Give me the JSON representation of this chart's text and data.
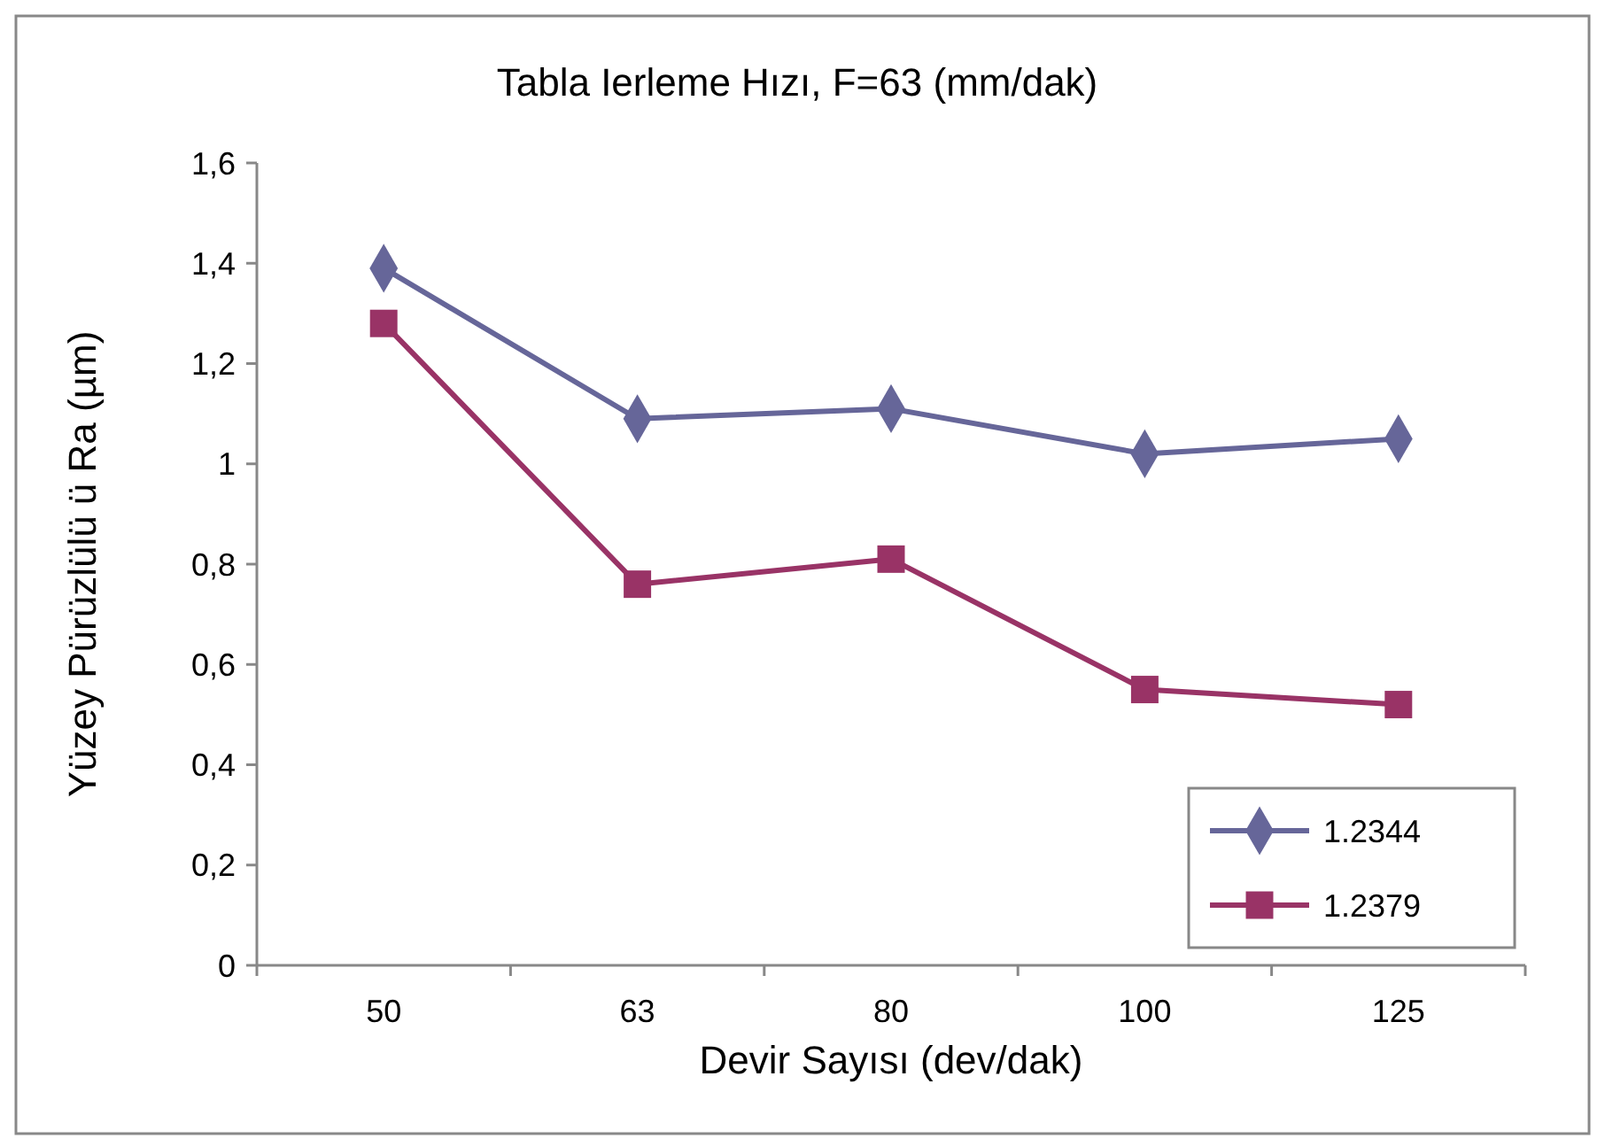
{
  "chart_data": {
    "type": "line",
    "title": "Tabla  Ierleme Hızı, F=63 (mm/dak)",
    "xlabel": "Devir Sayısı (dev/dak)",
    "ylabel": "Yüzey Pürüzlülü  ü Ra (µm)",
    "categories": [
      "50",
      "63",
      "80",
      "100",
      "125"
    ],
    "series": [
      {
        "name": "1.2344",
        "color": "#666699",
        "marker": "diamond",
        "values": [
          1.39,
          1.09,
          1.11,
          1.02,
          1.05
        ]
      },
      {
        "name": "1.2379",
        "color": "#993366",
        "marker": "square",
        "values": [
          1.28,
          0.76,
          0.81,
          0.55,
          0.52
        ]
      }
    ],
    "ylim": [
      0,
      1.6
    ],
    "yticks": [
      0,
      {
        "value": 0.2,
        "label": "0,2"
      },
      {
        "value": 0.4,
        "label": "0,4"
      },
      {
        "value": 0.6,
        "label": "0,6"
      },
      {
        "value": 0.8,
        "label": "0,8"
      },
      1,
      {
        "value": 1.2,
        "label": "1,2"
      },
      {
        "value": 1.4,
        "label": "1,4"
      },
      {
        "value": 1.6,
        "label": "1,6"
      }
    ],
    "grid": false,
    "legend": "bottom right",
    "line_style": "solid"
  }
}
